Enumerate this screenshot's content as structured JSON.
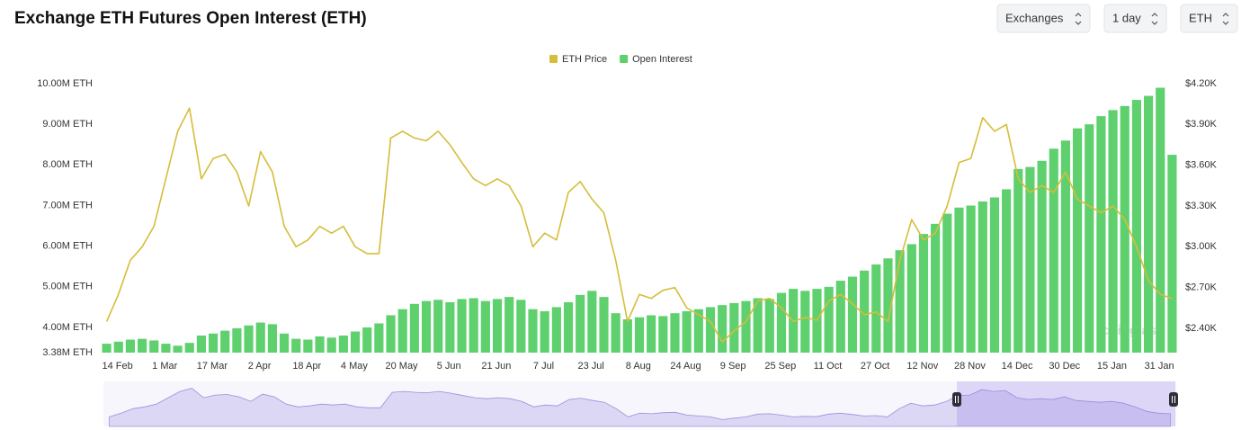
{
  "chart_data": {
    "type": "combo",
    "title": "Exchange ETH Futures Open Interest (ETH)",
    "categories": [
      "14 Feb",
      null,
      null,
      null,
      "1 Mar",
      null,
      null,
      null,
      "17 Mar",
      null,
      null,
      null,
      "2 Apr",
      null,
      null,
      null,
      "18 Apr",
      null,
      null,
      null,
      "4 May",
      null,
      null,
      null,
      "20 May",
      null,
      null,
      null,
      "5 Jun",
      null,
      null,
      null,
      "21 Jun",
      null,
      null,
      null,
      "7 Jul",
      null,
      null,
      null,
      "23 Jul",
      null,
      null,
      null,
      "8 Aug",
      null,
      null,
      null,
      "24 Aug",
      null,
      null,
      null,
      "9 Sep",
      null,
      null,
      null,
      "25 Sep",
      null,
      null,
      null,
      "11 Oct",
      null,
      null,
      null,
      "27 Oct",
      null,
      null,
      null,
      "12 Nov",
      null,
      null,
      null,
      "28 Nov",
      null,
      null,
      null,
      "14 Dec",
      null,
      null,
      null,
      "30 Dec",
      null,
      null,
      null,
      "15 Jan",
      null,
      null,
      null,
      "31 Jan",
      null,
      null
    ],
    "series": [
      {
        "name": "ETH Price",
        "color": "#d6bd3a",
        "type": "line",
        "axis": "y2",
        "values": [
          2450,
          2650,
          2900,
          3000,
          3150,
          3500,
          3850,
          4020,
          3500,
          3650,
          3680,
          3550,
          3300,
          3700,
          3550,
          3150,
          3000,
          3050,
          3150,
          3100,
          3150,
          3000,
          2950,
          2950,
          3800,
          3850,
          3800,
          3780,
          3850,
          3750,
          3620,
          3500,
          3450,
          3500,
          3450,
          3300,
          3000,
          3100,
          3050,
          3400,
          3480,
          3350,
          3250,
          2900,
          2450,
          2650,
          2620,
          2680,
          2700,
          2550,
          2500,
          2450,
          2300,
          2380,
          2450,
          2600,
          2620,
          2550,
          2450,
          2480,
          2460,
          2600,
          2650,
          2580,
          2500,
          2520,
          2450,
          2900,
          3200,
          3050,
          3100,
          3300,
          3620,
          3650,
          3950,
          3850,
          3900,
          3500,
          3400,
          3450,
          3400,
          3550,
          3350,
          3300,
          3250,
          3300,
          3200,
          3000,
          2750,
          2650,
          2620
        ]
      },
      {
        "name": "Open Interest",
        "color": "#5fd06e",
        "type": "bar",
        "values": [
          3600000,
          3650000,
          3700000,
          3720000,
          3680000,
          3600000,
          3550000,
          3620000,
          3800000,
          3850000,
          3920000,
          3980000,
          4050000,
          4120000,
          4080000,
          3850000,
          3720000,
          3700000,
          3780000,
          3750000,
          3800000,
          3900000,
          4000000,
          4100000,
          4300000,
          4450000,
          4580000,
          4650000,
          4680000,
          4620000,
          4700000,
          4720000,
          4650000,
          4700000,
          4750000,
          4680000,
          4450000,
          4400000,
          4500000,
          4620000,
          4800000,
          4900000,
          4750000,
          4350000,
          4200000,
          4250000,
          4300000,
          4280000,
          4350000,
          4400000,
          4450000,
          4500000,
          4550000,
          4600000,
          4650000,
          4720000,
          4700000,
          4850000,
          4950000,
          4900000,
          4950000,
          5000000,
          5150000,
          5250000,
          5400000,
          5550000,
          5700000,
          5900000,
          6050000,
          6300000,
          6550000,
          6800000,
          6950000,
          7000000,
          7100000,
          7200000,
          7400000,
          7900000,
          7950000,
          8100000,
          8400000,
          8600000,
          8900000,
          9000000,
          9200000,
          9350000,
          9450000,
          9600000,
          9700000,
          9900000,
          8250000
        ]
      }
    ],
    "ylim": [
      3380000,
      10000000
    ],
    "yticks": [
      {
        "value": 3380000,
        "label": "3.38M ETH"
      },
      {
        "value": 4000000,
        "label": "4.00M ETH"
      },
      {
        "value": 5000000,
        "label": "5.00M ETH"
      },
      {
        "value": 6000000,
        "label": "6.00M ETH"
      },
      {
        "value": 7000000,
        "label": "7.00M ETH"
      },
      {
        "value": 8000000,
        "label": "8.00M ETH"
      },
      {
        "value": 9000000,
        "label": "9.00M ETH"
      },
      {
        "value": 10000000,
        "label": "10.00M ETH"
      }
    ],
    "y2lim": [
      2221,
      4200
    ],
    "y2ticks": [
      {
        "value": 2400,
        "label": "$2.40K"
      },
      {
        "value": 2700,
        "label": "$2.70K"
      },
      {
        "value": 3000,
        "label": "$3.00K"
      },
      {
        "value": 3300,
        "label": "$3.30K"
      },
      {
        "value": 3600,
        "label": "$3.60K"
      },
      {
        "value": 3900,
        "label": "$3.90K"
      },
      {
        "value": 4200,
        "label": "$4.20K"
      }
    ],
    "legend": "top"
  },
  "controls": [
    "Exchanges",
    "1 day",
    "ETH"
  ],
  "watermark": "coinglass"
}
